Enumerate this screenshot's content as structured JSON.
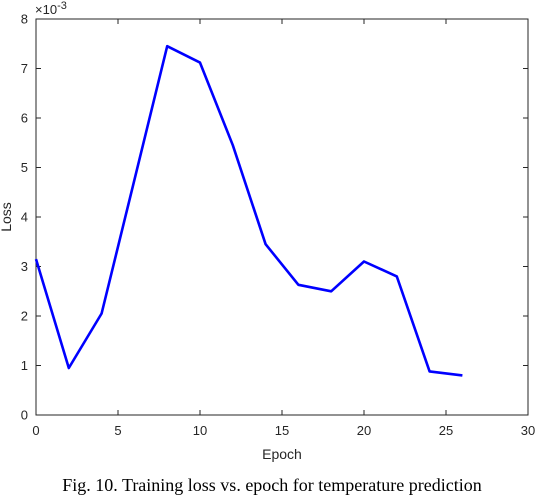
{
  "caption": "Fig. 10. Training loss vs. epoch for temperature prediction",
  "chart_data": {
    "type": "line",
    "title": "",
    "xlabel": "Epoch",
    "ylabel": "Loss",
    "y_exponent": "×10^-3",
    "y_scale_note": "values in units of 10^-3",
    "xlim": [
      0,
      30
    ],
    "ylim": [
      0,
      8
    ],
    "x_ticks": [
      0,
      5,
      10,
      15,
      20,
      25,
      30
    ],
    "y_ticks": [
      0,
      1,
      2,
      3,
      4,
      5,
      6,
      7,
      8
    ],
    "grid": false,
    "line_color": "#0000ff",
    "series": [
      {
        "x": [
          0,
          2,
          4,
          6,
          8,
          10,
          12,
          14,
          16,
          18,
          20,
          22,
          24,
          26
        ],
        "y": [
          3.15,
          0.95,
          2.05,
          4.75,
          7.45,
          7.12,
          5.45,
          3.45,
          2.63,
          2.5,
          3.1,
          2.8,
          0.88,
          0.8
        ]
      }
    ]
  }
}
